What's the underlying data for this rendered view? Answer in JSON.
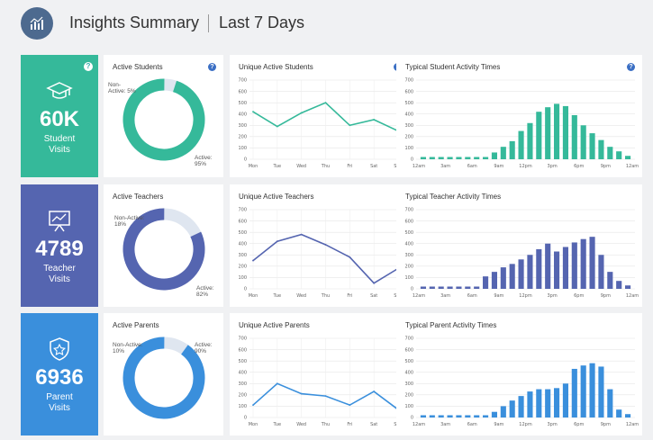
{
  "header": {
    "title": "Insights Summary",
    "range": "Last 7 Days"
  },
  "rows": [
    {
      "color": "#35b99a",
      "kpi": {
        "value": "60K",
        "label_line1": "Student",
        "label_line2": "Visits"
      },
      "donut": {
        "title": "Active Students",
        "active_label": "Active:",
        "active_value": "95%",
        "nonactive_label": "Non-",
        "nonactive_label2": "Active: 5%",
        "active_fraction": 0.95
      },
      "line": {
        "title": "Unique Active Students"
      },
      "bars": {
        "title": "Typical Student Activity Times"
      }
    },
    {
      "color": "#5565b0",
      "kpi": {
        "value": "4789",
        "label_line1": "Teacher",
        "label_line2": "Visits"
      },
      "donut": {
        "title": "Active Teachers",
        "active_label": "Active:",
        "active_value": "82%",
        "nonactive_label": "Non-Active:",
        "nonactive_label2": "18%",
        "active_fraction": 0.82
      },
      "line": {
        "title": "Unique Active Teachers"
      },
      "bars": {
        "title": "Typical  Teacher Activity Times"
      }
    },
    {
      "color": "#3a8fdc",
      "kpi": {
        "value": "6936",
        "label_line1": "Parent",
        "label_line2": "Visits"
      },
      "donut": {
        "title": "Active Parents",
        "active_label": "Active:",
        "active_value": "90%",
        "nonactive_label": "Non-Active:",
        "nonactive_label2": "10%",
        "active_fraction": 0.9
      },
      "line": {
        "title": "Unique Active Parents"
      },
      "bars": {
        "title": "Typical Parent Activity Times"
      }
    }
  ],
  "chart_data": [
    {
      "type": "line",
      "title": "Unique Active Students",
      "categories": [
        "Mon",
        "Tue",
        "Wed",
        "Thu",
        "Fri",
        "Sat",
        "Sun"
      ],
      "values": [
        420,
        290,
        410,
        500,
        300,
        350,
        250
      ],
      "ylim": [
        0,
        700
      ],
      "yticks": [
        0,
        100,
        200,
        300,
        400,
        500,
        600,
        700
      ]
    },
    {
      "type": "line",
      "title": "Unique Active Teachers",
      "categories": [
        "Mon",
        "Tue",
        "Wed",
        "Thu",
        "Fri",
        "Sat",
        "Sun"
      ],
      "values": [
        250,
        420,
        480,
        390,
        280,
        50,
        180
      ],
      "ylim": [
        0,
        700
      ],
      "yticks": [
        0,
        100,
        200,
        300,
        400,
        500,
        600,
        700
      ]
    },
    {
      "type": "line",
      "title": "Unique Active Parents",
      "categories": [
        "Mon",
        "Tue",
        "Wed",
        "Thu",
        "Fri",
        "Sat",
        "Sun"
      ],
      "values": [
        110,
        300,
        210,
        190,
        110,
        230,
        70
      ],
      "ylim": [
        0,
        700
      ],
      "yticks": [
        0,
        100,
        200,
        300,
        400,
        500,
        600,
        700
      ]
    },
    {
      "type": "bar",
      "title": "Typical Student Activity Times",
      "xticks": [
        "12am",
        "3am",
        "6am",
        "9am",
        "12pm",
        "3pm",
        "6pm",
        "9pm",
        "12am"
      ],
      "values": [
        20,
        20,
        20,
        20,
        20,
        20,
        20,
        20,
        60,
        110,
        160,
        250,
        320,
        420,
        460,
        490,
        470,
        390,
        300,
        230,
        170,
        110,
        70,
        30
      ],
      "ylim": [
        0,
        700
      ],
      "yticks": [
        0,
        100,
        200,
        300,
        400,
        500,
        600,
        700
      ]
    },
    {
      "type": "bar",
      "title": "Typical  Teacher Activity Times",
      "xticks": [
        "12am",
        "3am",
        "6am",
        "9am",
        "12pm",
        "3pm",
        "6pm",
        "9pm",
        "12am"
      ],
      "values": [
        20,
        20,
        20,
        20,
        20,
        20,
        20,
        110,
        150,
        190,
        220,
        260,
        300,
        350,
        400,
        330,
        370,
        410,
        440,
        460,
        300,
        150,
        70,
        30
      ],
      "ylim": [
        0,
        700
      ],
      "yticks": [
        0,
        100,
        200,
        300,
        400,
        500,
        600,
        700
      ]
    },
    {
      "type": "bar",
      "title": "Typical Parent Activity Times",
      "xticks": [
        "12am",
        "3am",
        "6am",
        "9am",
        "12pm",
        "3pm",
        "6pm",
        "9pm",
        "12am"
      ],
      "values": [
        20,
        20,
        20,
        20,
        20,
        20,
        20,
        20,
        50,
        100,
        150,
        190,
        230,
        250,
        250,
        260,
        300,
        430,
        460,
        480,
        450,
        250,
        70,
        30
      ],
      "ylim": [
        0,
        700
      ],
      "yticks": [
        0,
        100,
        200,
        300,
        400,
        500,
        600,
        700
      ]
    }
  ]
}
